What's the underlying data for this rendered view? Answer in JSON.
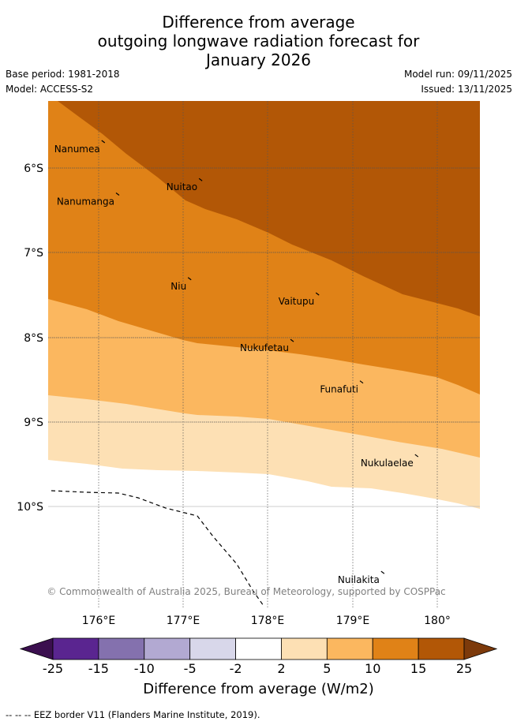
{
  "title": {
    "line1": "Difference from average",
    "line2": "outgoing longwave radiation forecast for",
    "line3": "January 2026"
  },
  "meta": {
    "base_period": "Base period: 1981-2018",
    "model": "Model: ACCESS-S2",
    "model_run": "Model run: 09/11/2025",
    "issued": "Issued: 13/11/2025"
  },
  "map": {
    "lon_ticks": [
      "176°E",
      "177°E",
      "178°E",
      "179°E",
      "180°"
    ],
    "lat_ticks": [
      "6°S",
      "7°S",
      "8°S",
      "9°S",
      "10°S"
    ],
    "places": [
      {
        "name": "Nanumea",
        "lon": 176.15,
        "lat": 5.68
      },
      {
        "name": "Nuitao",
        "lon": 177.3,
        "lat": 6.13
      },
      {
        "name": "Nanumanga",
        "lon": 176.32,
        "lat": 6.3
      },
      {
        "name": "Niu",
        "lon": 177.17,
        "lat": 7.3
      },
      {
        "name": "Vaitupu",
        "lon": 178.68,
        "lat": 7.48
      },
      {
        "name": "Nukufetau",
        "lon": 178.38,
        "lat": 8.03
      },
      {
        "name": "Funafuti",
        "lon": 179.2,
        "lat": 8.52
      },
      {
        "name": "Nukulaelae",
        "lon": 179.85,
        "lat": 9.39
      },
      {
        "name": "Nuilakita",
        "lon": 179.45,
        "lat": 10.77
      }
    ],
    "copyright": "© Commonwealth of Australia 2025, Bureau of Meteorology, supported by COSPPac"
  },
  "colorbar": {
    "colors": [
      "#3b0f4f",
      "#5a2590",
      "#8471ae",
      "#b2a9d2",
      "#d8d7ea",
      "#ffffff",
      "#fde0b4",
      "#fbb75f",
      "#e08217",
      "#b25706",
      "#7d3a0b"
    ],
    "labels": [
      "-25",
      "-15",
      "-10",
      "-5",
      "-2",
      "2",
      "5",
      "10",
      "15",
      "25"
    ],
    "title": "Difference from average (W/m2)"
  },
  "footer": "--  --  -- EEZ border V11 (Flanders Marine Institute, 2019)."
}
